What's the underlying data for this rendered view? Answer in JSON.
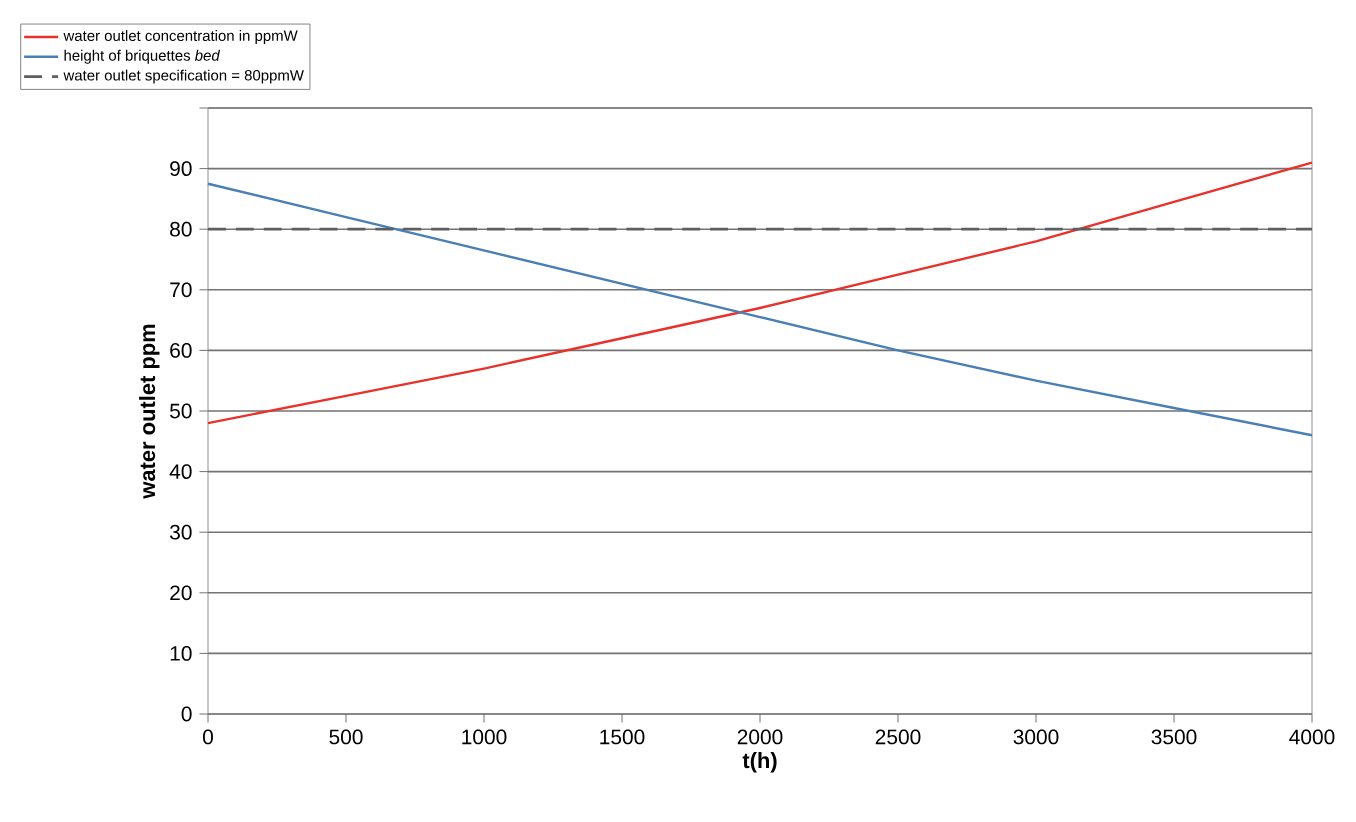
{
  "chart_data": {
    "type": "line",
    "xlabel": "t(h)",
    "ylabel": "water outlet ppm",
    "x": [
      0,
      500,
      1000,
      1500,
      2000,
      2500,
      3000,
      3500,
      4000
    ],
    "series": [
      {
        "name": "water outlet concentration in ppmW",
        "color": "#e8312a",
        "values": [
          48,
          52.5,
          57,
          62,
          67,
          72.5,
          78,
          84.5,
          91
        ]
      },
      {
        "name": "height of briquettes *bed*",
        "color": "#4a7fb5",
        "values": [
          87.5,
          82,
          76.5,
          71,
          65.5,
          60,
          55,
          50.5,
          46
        ]
      }
    ],
    "ref_lines": [
      {
        "axis": "y",
        "value": 80,
        "label": "water outlet specification = 80ppmW",
        "color": "#5e5e5e",
        "line_style": "dashed"
      }
    ],
    "xlim": [
      0,
      4000
    ],
    "xticks": [
      0,
      500,
      1000,
      1500,
      2000,
      2500,
      3000,
      3500,
      4000
    ],
    "ylim": [
      0,
      100
    ],
    "yticks": [
      0,
      10,
      20,
      30,
      40,
      50,
      60,
      70,
      80,
      90,
      {
        "value": 100,
        "label": null
      }
    ],
    "grid": "y",
    "legend": "top left",
    "marker": "none",
    "line_style": "solid"
  }
}
